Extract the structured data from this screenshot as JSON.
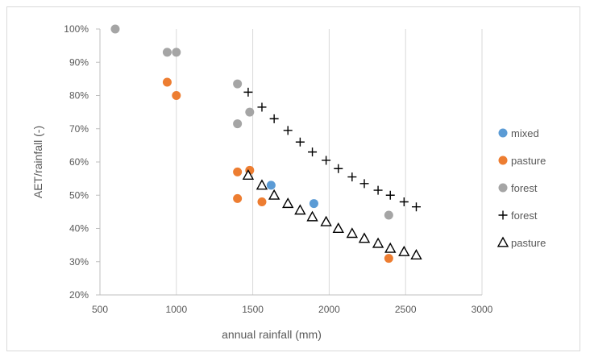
{
  "chart_data": {
    "type": "scatter",
    "title": "",
    "xlabel": "annual rainfall (mm)",
    "ylabel": "AET/rainfall (-)",
    "xlim": [
      500,
      3000
    ],
    "ylim": [
      20,
      100
    ],
    "x_ticks": [
      500,
      1000,
      1500,
      2000,
      2500,
      3000
    ],
    "y_ticks": [
      20,
      30,
      40,
      50,
      60,
      70,
      80,
      90,
      100
    ],
    "y_tick_labels": [
      "20%",
      "30%",
      "40%",
      "50%",
      "60%",
      "70%",
      "80%",
      "90%",
      "100%"
    ],
    "grid": "vertical",
    "legend_position": "right",
    "series": [
      {
        "name": "mixed",
        "marker": "circle",
        "color": "#5b9bd5",
        "points": [
          [
            1620,
            53
          ],
          [
            1900,
            47.5
          ]
        ]
      },
      {
        "name": "pasture",
        "marker": "circle",
        "color": "#ed7d31",
        "points": [
          [
            940,
            84
          ],
          [
            1000,
            80
          ],
          [
            1400,
            57
          ],
          [
            1480,
            57.5
          ],
          [
            1400,
            49
          ],
          [
            1560,
            48
          ],
          [
            2390,
            31
          ]
        ]
      },
      {
        "name": "forest",
        "marker": "circle",
        "color": "#a5a5a5",
        "points": [
          [
            600,
            100
          ],
          [
            940,
            93
          ],
          [
            1000,
            93
          ],
          [
            1400,
            83.5
          ],
          [
            1480,
            75
          ],
          [
            1400,
            71.5
          ],
          [
            2390,
            44
          ]
        ]
      },
      {
        "name": "forest",
        "marker": "plus",
        "color": "#000000",
        "points": [
          [
            1470,
            81
          ],
          [
            1560,
            76.5
          ],
          [
            1640,
            73
          ],
          [
            1730,
            69.5
          ],
          [
            1810,
            66
          ],
          [
            1890,
            63
          ],
          [
            1980,
            60.5
          ],
          [
            2060,
            58
          ],
          [
            2150,
            55.5
          ],
          [
            2230,
            53.5
          ],
          [
            2320,
            51.5
          ],
          [
            2400,
            50
          ],
          [
            2490,
            48
          ],
          [
            2570,
            46.5
          ]
        ]
      },
      {
        "name": "pasture",
        "marker": "triangle",
        "color": "#000000",
        "points": [
          [
            1470,
            56
          ],
          [
            1560,
            53
          ],
          [
            1640,
            50
          ],
          [
            1730,
            47.5
          ],
          [
            1810,
            45.5
          ],
          [
            1890,
            43.5
          ],
          [
            1980,
            42
          ],
          [
            2060,
            40
          ],
          [
            2150,
            38.5
          ],
          [
            2230,
            37
          ],
          [
            2320,
            35.5
          ],
          [
            2400,
            34
          ],
          [
            2490,
            33
          ],
          [
            2570,
            32
          ]
        ]
      }
    ]
  }
}
